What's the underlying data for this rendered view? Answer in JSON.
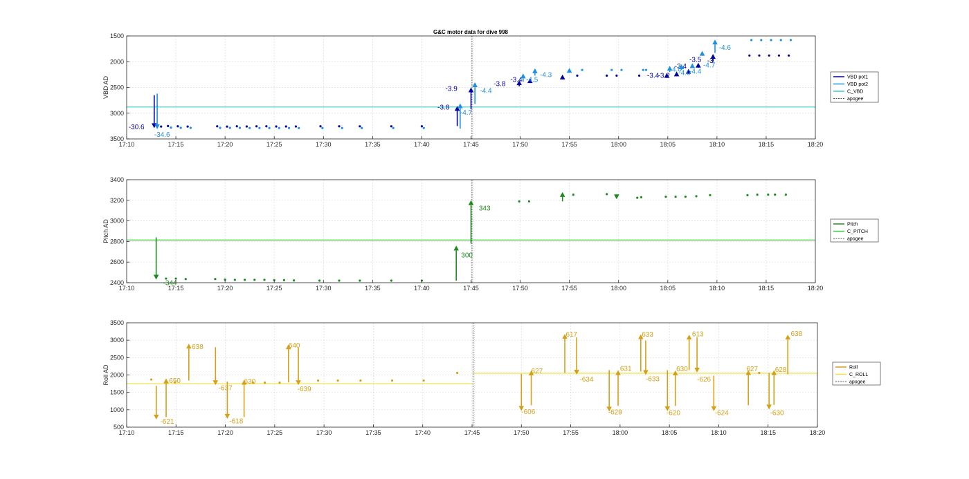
{
  "title": "G&C motor data for dive 998",
  "chart_data": [
    {
      "type": "scatter",
      "ylabel": "VBD AD",
      "ylim": [
        1500,
        3500
      ],
      "y_reversed": true,
      "xlim": [
        "17:10",
        "18:20"
      ],
      "x_ticks": [
        "17:10",
        "17:15",
        "17:20",
        "17:25",
        "17:30",
        "17:35",
        "17:40",
        "17:45",
        "17:50",
        "17:55",
        "18:00",
        "18:05",
        "18:10",
        "18:15",
        "18:20"
      ],
      "y_ticks": [
        1500,
        2000,
        2500,
        3000,
        3500
      ],
      "grid": true,
      "legend": {
        "position": "right",
        "entries": [
          "VBD pot1",
          "VBD pot2",
          "C_VBD",
          "apogee"
        ]
      },
      "colors": {
        "pot1": "#0000a8",
        "pot2": "#1e90e0",
        "c_line": "#33cccc",
        "apogee": "#555555"
      },
      "c_vbd": 2880,
      "apogee": "17:45.1",
      "pot1_points": [
        [
          "17:13.5",
          3260
        ],
        [
          "17:14.2",
          3250
        ],
        [
          "17:15.2",
          3255
        ],
        [
          "17:16.2",
          3260
        ],
        [
          "17:19.2",
          3255
        ],
        [
          "17:20.2",
          3260
        ],
        [
          "17:21.2",
          3255
        ],
        [
          "17:22.2",
          3258
        ],
        [
          "17:23.2",
          3255
        ],
        [
          "17:24.2",
          3255
        ],
        [
          "17:25.2",
          3258
        ],
        [
          "17:26.2",
          3258
        ],
        [
          "17:27.2",
          3258
        ],
        [
          "17:29.7",
          3255
        ],
        [
          "17:31.6",
          3255
        ],
        [
          "17:33.7",
          3255
        ],
        [
          "17:36.9",
          3255
        ],
        [
          "17:40.0",
          3255
        ],
        [
          "17:55.8",
          2270
        ],
        [
          "17:58.8",
          2270
        ],
        [
          "17:59.8",
          2270
        ],
        [
          "18:02.1",
          2270
        ],
        [
          "18:13.3",
          1880
        ],
        [
          "18:14.3",
          1880
        ],
        [
          "18:15.3",
          1880
        ],
        [
          "18:16.3",
          1880
        ],
        [
          "18:17.3",
          1880
        ]
      ],
      "pot2_points": [
        [
          "17:14.5",
          3280
        ],
        [
          "17:15.5",
          3285
        ],
        [
          "17:16.5",
          3285
        ],
        [
          "17:19.5",
          3285
        ],
        [
          "17:20.5",
          3285
        ],
        [
          "17:21.5",
          3285
        ],
        [
          "17:22.5",
          3288
        ],
        [
          "17:23.5",
          3288
        ],
        [
          "17:24.5",
          3288
        ],
        [
          "17:25.5",
          3288
        ],
        [
          "17:26.5",
          3288
        ],
        [
          "17:27.5",
          3288
        ],
        [
          "17:29.9",
          3288
        ],
        [
          "17:31.9",
          3288
        ],
        [
          "17:33.9",
          3288
        ],
        [
          "17:37.1",
          3288
        ],
        [
          "17:40.2",
          3288
        ],
        [
          "17:56.3",
          2160
        ],
        [
          "17:59.3",
          2160
        ],
        [
          "18:00.3",
          2160
        ],
        [
          "18:02.5",
          2160
        ],
        [
          "18:02.8",
          2160
        ],
        [
          "18:13.5",
          1580
        ],
        [
          "18:14.5",
          1580
        ],
        [
          "18:15.5",
          1580
        ],
        [
          "18:16.5",
          1580
        ],
        [
          "18:17.5",
          1580
        ]
      ],
      "pot1_arrows": [
        {
          "t": "17:12.8",
          "from": 2650,
          "to": 3290,
          "label": "-30.6",
          "lt": "17:10.2",
          "ly": 3270
        },
        {
          "t": "17:43.6",
          "from": 3250,
          "to": 2860,
          "label": "-3.8",
          "lt": "17:41.6",
          "ly": 2890
        },
        {
          "t": "17:45.0",
          "from": 2920,
          "to": 2500,
          "label": "-3.9",
          "lt": "17:42.4",
          "ly": 2530
        },
        {
          "t": "17:49.9",
          "from": 2480,
          "to": 2360,
          "label": "-3.8",
          "lt": "17:47.3",
          "ly": 2430
        },
        {
          "t": "17:51.0",
          "from": 2400,
          "to": 2320,
          "label": "-3.4",
          "lt": "17:49.0",
          "ly": 2350
        },
        {
          "t": "17:54.3",
          "from": 2280,
          "to": 2250,
          "label": "",
          "lt": "17:54.3",
          "ly": 2250
        },
        {
          "t": "18:04.9",
          "from": 2250,
          "to": 2220,
          "label": "-3.4",
          "lt": "18:02.9",
          "ly": 2270
        },
        {
          "t": "18:05.9",
          "from": 2230,
          "to": 2190,
          "label": "-3.2",
          "lt": "18:04.0",
          "ly": 2270
        },
        {
          "t": "18:07.1",
          "from": 2180,
          "to": 2140,
          "label": "-3.4",
          "lt": "18:05.7",
          "ly": 2090
        },
        {
          "t": "18:08.1",
          "from": 2100,
          "to": 2020,
          "label": "-3.5",
          "lt": "18:07.2",
          "ly": 1960
        },
        {
          "t": "18:09.6",
          "from": 2000,
          "to": 1850,
          "label": "-3.",
          "lt": "18:09.0",
          "ly": 1980
        }
      ],
      "pot2_arrows": [
        {
          "t": "17:13.1",
          "from": 2620,
          "to": 3310,
          "label": "-34.6",
          "lt": "17:12.8",
          "ly": 3420
        },
        {
          "t": "17:43.9",
          "from": 3300,
          "to": 2810,
          "label": "-4.7",
          "lt": "17:43.9",
          "ly": 2990
        },
        {
          "t": "17:45.4",
          "from": 2820,
          "to": 2400,
          "label": "-4.4",
          "lt": "17:45.9",
          "ly": 2570
        },
        {
          "t": "17:50.3",
          "from": 2390,
          "to": 2230,
          "label": "-4.5",
          "lt": "17:50.6",
          "ly": 2350
        },
        {
          "t": "17:51.5",
          "from": 2270,
          "to": 2130,
          "label": "-4.3",
          "lt": "17:52.0",
          "ly": 2260
        },
        {
          "t": "17:55.0",
          "from": 2160,
          "to": 2120,
          "label": "",
          "lt": "17:55.0",
          "ly": 2120
        },
        {
          "t": "18:05.2",
          "from": 2200,
          "to": 2080,
          "label": "-4.0",
          "lt": "18:05.2",
          "ly": 2150
        },
        {
          "t": "18:06.4",
          "from": 2160,
          "to": 2050,
          "label": "-4.0",
          "lt": "18:06.1",
          "ly": 2220
        },
        {
          "t": "18:07.5",
          "from": 2120,
          "to": 2030,
          "label": "-4.4",
          "lt": "18:07.2",
          "ly": 2190
        },
        {
          "t": "18:08.5",
          "from": 1870,
          "to": 1790,
          "label": "-4.7",
          "lt": "18:08.6",
          "ly": 2070
        },
        {
          "t": "18:09.8",
          "from": 1830,
          "to": 1570,
          "label": "-4.6",
          "lt": "18:10.2",
          "ly": 1730
        }
      ]
    },
    {
      "type": "scatter",
      "ylabel": "Pitch AD",
      "ylim": [
        2400,
        3400
      ],
      "y_reversed": false,
      "xlim": [
        "17:10",
        "18:20"
      ],
      "x_ticks": [
        "17:10",
        "17:15",
        "17:20",
        "17:25",
        "17:30",
        "17:35",
        "17:40",
        "17:45",
        "17:50",
        "17:55",
        "18:00",
        "18:05",
        "18:10",
        "18:15",
        "18:20"
      ],
      "y_ticks": [
        2400,
        2600,
        2800,
        3000,
        3200,
        3400
      ],
      "grid": true,
      "legend": {
        "position": "right",
        "entries": [
          "Pitch",
          "C_PITCH",
          "apogee"
        ]
      },
      "colors": {
        "pitch": "#1f8a1f",
        "c_line": "#3cc83c",
        "apogee": "#555555"
      },
      "c_pitch": 2815,
      "apogee": "17:45.1",
      "points": [
        [
          "17:14.0",
          2440
        ],
        [
          "17:15.0",
          2440
        ],
        [
          "17:16.0",
          2435
        ],
        [
          "17:19.0",
          2435
        ],
        [
          "17:20.0",
          2430
        ],
        [
          "17:21.0",
          2428
        ],
        [
          "17:22.0",
          2428
        ],
        [
          "17:23.0",
          2428
        ],
        [
          "17:24.0",
          2428
        ],
        [
          "17:25.0",
          2425
        ],
        [
          "17:26.0",
          2425
        ],
        [
          "17:27.0",
          2422
        ],
        [
          "17:29.6",
          2420
        ],
        [
          "17:31.6",
          2420
        ],
        [
          "17:33.7",
          2420
        ],
        [
          "17:36.9",
          2420
        ],
        [
          "17:40.0",
          2420
        ],
        [
          "17:49.9",
          3190
        ],
        [
          "17:50.9",
          3190
        ],
        [
          "17:55.4",
          3255
        ],
        [
          "17:58.8",
          3260
        ],
        [
          "18:01.9",
          3225
        ],
        [
          "18:02.3",
          3230
        ],
        [
          "18:04.8",
          3235
        ],
        [
          "18:05.8",
          3235
        ],
        [
          "18:06.8",
          3235
        ],
        [
          "18:07.9",
          3240
        ],
        [
          "18:09.3",
          3250
        ],
        [
          "18:13.1",
          3250
        ],
        [
          "18:14.1",
          3255
        ],
        [
          "18:15.2",
          3255
        ],
        [
          "18:15.9",
          3255
        ],
        [
          "18:17.0",
          3255
        ]
      ],
      "arrows": [
        {
          "t": "17:13.0",
          "from": 2840,
          "to": 2430,
          "label": "-344",
          "lt": "17:13.7",
          "ly": 2395
        },
        {
          "t": "17:43.5",
          "from": 2420,
          "to": 2760,
          "label": "300",
          "lt": "17:44.0",
          "ly": 2665
        },
        {
          "t": "17:45.0",
          "from": 2780,
          "to": 3200,
          "label": "343",
          "lt": "17:45.8",
          "ly": 3120
        },
        {
          "t": "17:54.3",
          "from": 3190,
          "to": 3280,
          "label": "",
          "lt": "17:54.3",
          "ly": 3280
        },
        {
          "t": "17:59.8",
          "from": 3260,
          "to": 3210,
          "label": "",
          "lt": "17:59.8",
          "ly": 3210
        }
      ]
    },
    {
      "type": "scatter",
      "ylabel": "Roll AD",
      "ylim": [
        500,
        3500
      ],
      "y_reversed": false,
      "xlim": [
        "17:10",
        "18:20"
      ],
      "x_ticks": [
        "17:10",
        "17:15",
        "17:20",
        "17:25",
        "17:30",
        "17:35",
        "17:40",
        "17:45",
        "17:50",
        "17:55",
        "18:00",
        "18:05",
        "18:10",
        "18:15",
        "18:20"
      ],
      "y_ticks": [
        500,
        1000,
        1500,
        2000,
        2500,
        3000,
        3500
      ],
      "grid": true,
      "legend": {
        "position": "right",
        "entries": [
          "Roll",
          "C_ROLL",
          "apogee"
        ]
      },
      "colors": {
        "roll": "#d4a017",
        "c_line": "#f0e040",
        "apogee": "#555555"
      },
      "c_roll_segments": [
        {
          "from": "17:10",
          "to": "17:45.1",
          "value": 1750
        },
        {
          "from": "17:45.1",
          "to": "18:20",
          "value": 2050
        }
      ],
      "apogee": "17:45.1",
      "points": [
        [
          "17:12.5",
          1870
        ],
        [
          "17:14.9",
          1790
        ],
        [
          "17:22.8",
          1780
        ],
        [
          "17:24.0",
          1780
        ],
        [
          "17:25.5",
          1780
        ],
        [
          "17:29.4",
          1840
        ],
        [
          "17:31.4",
          1840
        ],
        [
          "17:33.7",
          1840
        ],
        [
          "17:36.9",
          1840
        ],
        [
          "17:40.1",
          1840
        ],
        [
          "17:43.5",
          2060
        ],
        [
          "18:14.1",
          2060
        ]
      ],
      "arrows": [
        {
          "t": "17:13.0",
          "from": 1690,
          "to": 720,
          "label": "-621",
          "lt": "17:13.4",
          "ly": 660
        },
        {
          "t": "17:14.0",
          "from": 790,
          "to": 1900,
          "label": "650",
          "lt": "17:14.3",
          "ly": 1830
        },
        {
          "t": "17:16.3",
          "from": 1840,
          "to": 2900,
          "label": "638",
          "lt": "17:16.6",
          "ly": 2800
        },
        {
          "t": "17:19.0",
          "from": 2800,
          "to": 1710,
          "label": "-637",
          "lt": "17:19.3",
          "ly": 1620
        },
        {
          "t": "17:20.2",
          "from": 1810,
          "to": 740,
          "label": "-618",
          "lt": "17:20.4",
          "ly": 670
        },
        {
          "t": "17:21.9",
          "from": 790,
          "to": 1860,
          "label": "630",
          "lt": "17:21.9",
          "ly": 1810
        },
        {
          "t": "17:26.4",
          "from": 1790,
          "to": 2880,
          "label": "640",
          "lt": "17:26.4",
          "ly": 2840
        },
        {
          "t": "17:27.4",
          "from": 2780,
          "to": 1710,
          "label": "-639",
          "lt": "17:27.3",
          "ly": 1590
        },
        {
          "t": "17:50.0",
          "from": 2030,
          "to": 970,
          "label": "-606",
          "lt": "17:50.0",
          "ly": 940
        },
        {
          "t": "17:51.0",
          "from": 1130,
          "to": 2130,
          "label": "627",
          "lt": "17:51.0",
          "ly": 2110
        },
        {
          "t": "17:54.4",
          "from": 2060,
          "to": 3180,
          "label": "617",
          "lt": "17:54.5",
          "ly": 3160
        },
        {
          "t": "17:55.6",
          "from": 3080,
          "to": 2010,
          "label": "-634",
          "lt": "17:55.9",
          "ly": 1870
        },
        {
          "t": "17:58.9",
          "from": 2140,
          "to": 950,
          "label": "-629",
          "lt": "17:58.8",
          "ly": 930
        },
        {
          "t": "17:59.8",
          "from": 1110,
          "to": 2140,
          "label": "631",
          "lt": "18:00.0",
          "ly": 2180
        },
        {
          "t": "18:02.1",
          "from": 2100,
          "to": 3170,
          "label": "633",
          "lt": "18:02.2",
          "ly": 3160
        },
        {
          "t": "18:02.6",
          "from": 2990,
          "to": 2000,
          "label": "-633",
          "lt": "18:02.6",
          "ly": 1880
        },
        {
          "t": "18:04.8",
          "from": 2140,
          "to": 960,
          "label": "-620",
          "lt": "18:04.7",
          "ly": 910
        },
        {
          "t": "18:05.6",
          "from": 1110,
          "to": 2130,
          "label": "630",
          "lt": "18:05.7",
          "ly": 2170
        },
        {
          "t": "18:07.0",
          "from": 2140,
          "to": 3160,
          "label": "613",
          "lt": "18:07.3",
          "ly": 3170
        },
        {
          "t": "18:07.8",
          "from": 3080,
          "to": 2070,
          "label": "-626",
          "lt": "18:07.8",
          "ly": 1870
        },
        {
          "t": "18:09.5",
          "from": 1980,
          "to": 960,
          "label": "-624",
          "lt": "18:09.6",
          "ly": 910
        },
        {
          "t": "18:13.0",
          "from": 1130,
          "to": 2140,
          "label": "627",
          "lt": "18:12.8",
          "ly": 2170
        },
        {
          "t": "18:15.1",
          "from": 2060,
          "to": 1010,
          "label": "-630",
          "lt": "18:15.2",
          "ly": 910
        },
        {
          "t": "18:15.6",
          "from": 1140,
          "to": 2140,
          "label": "628",
          "lt": "18:15.7",
          "ly": 2150
        },
        {
          "t": "18:17.0",
          "from": 2020,
          "to": 3160,
          "label": "638",
          "lt": "18:17.3",
          "ly": 3180
        }
      ]
    }
  ]
}
